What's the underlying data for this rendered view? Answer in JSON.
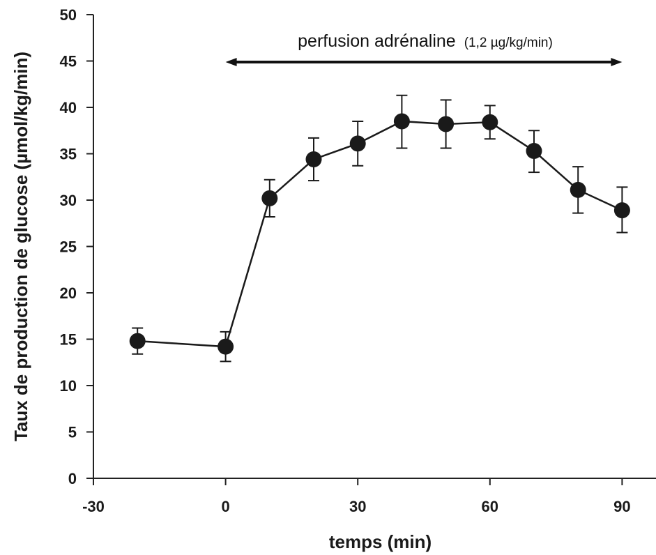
{
  "chart_data": {
    "type": "line",
    "xlabel": "temps (min)",
    "ylabel": "Taux de production de glucose (µmol/kg/min)",
    "xlim": [
      -30,
      96
    ],
    "ylim": [
      0,
      50
    ],
    "xticks": [
      -30,
      0,
      30,
      60,
      90
    ],
    "yticks": [
      0,
      5,
      10,
      15,
      20,
      25,
      30,
      35,
      40,
      45,
      50
    ],
    "grid": false,
    "series": [
      {
        "x": [
          -20,
          0,
          10,
          20,
          30,
          40,
          50,
          60,
          70,
          80,
          90
        ],
        "y": [
          14.8,
          14.2,
          30.2,
          34.4,
          36.1,
          38.5,
          38.2,
          38.4,
          35.3,
          31.1,
          28.9
        ],
        "error_low": [
          13.4,
          12.6,
          28.2,
          32.1,
          33.7,
          35.6,
          35.6,
          36.6,
          33.0,
          28.6,
          26.5
        ],
        "error_high": [
          16.2,
          15.8,
          32.2,
          36.7,
          38.5,
          41.3,
          40.8,
          40.2,
          37.5,
          33.6,
          31.4
        ]
      }
    ],
    "annotation": {
      "label": "perfusion adrénaline",
      "detail": "(1,2 µg/kg/min)",
      "x_start": 0,
      "x_end": 90
    }
  }
}
